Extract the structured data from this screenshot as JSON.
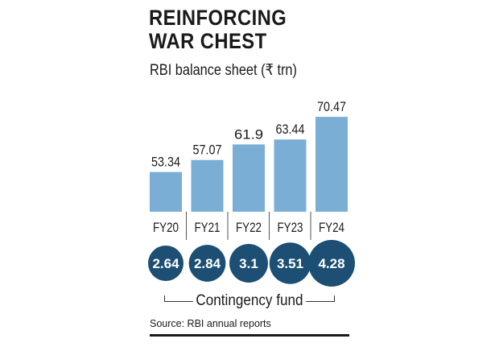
{
  "header": {
    "title_line1": "REINFORCING",
    "title_line2": "WAR CHEST",
    "subtitle": "RBI balance sheet (₹ trn)"
  },
  "chart_data": {
    "type": "bar",
    "title": "REINFORCING WAR CHEST",
    "subtitle": "RBI balance sheet (₹ trn)",
    "categories": [
      "FY20",
      "FY21",
      "FY22",
      "FY23",
      "FY24"
    ],
    "series": [
      {
        "name": "RBI balance sheet (₹ trn)",
        "values": [
          53.34,
          57.07,
          61.9,
          63.44,
          70.47
        ],
        "color": "#7aaed4"
      },
      {
        "name": "Contingency fund",
        "values": [
          2.64,
          2.84,
          3.1,
          3.51,
          4.28
        ],
        "color": "#1c4f73"
      }
    ],
    "bar_labels": [
      "53.34",
      "57.07",
      "61.9",
      "63.44",
      "70.47"
    ],
    "bubble_labels": [
      "2.64",
      "2.84",
      "3.1",
      "3.51",
      "4.28"
    ],
    "grid": false
  },
  "footer": {
    "fund_label": "Contingency fund",
    "source": "Source:  RBI annual reports"
  }
}
